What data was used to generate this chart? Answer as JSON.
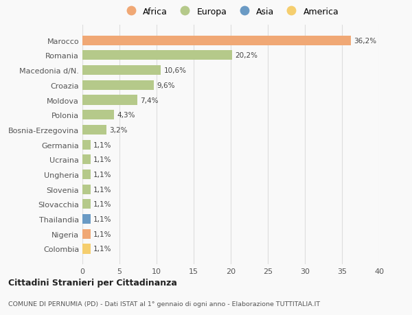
{
  "countries": [
    "Colombia",
    "Nigeria",
    "Thailandia",
    "Slovacchia",
    "Slovenia",
    "Ungheria",
    "Ucraina",
    "Germania",
    "Bosnia-Erzegovina",
    "Polonia",
    "Moldova",
    "Croazia",
    "Macedonia d/N.",
    "Romania",
    "Marocco"
  ],
  "values": [
    1.1,
    1.1,
    1.1,
    1.1,
    1.1,
    1.1,
    1.1,
    1.1,
    3.2,
    4.3,
    7.4,
    9.6,
    10.6,
    20.2,
    36.2
  ],
  "labels": [
    "1,1%",
    "1,1%",
    "1,1%",
    "1,1%",
    "1,1%",
    "1,1%",
    "1,1%",
    "1,1%",
    "3,2%",
    "4,3%",
    "7,4%",
    "9,6%",
    "10,6%",
    "20,2%",
    "36,2%"
  ],
  "bar_colors": [
    "#F5CE6E",
    "#F0A875",
    "#6A9AC4",
    "#B5C98A",
    "#B5C98A",
    "#B5C98A",
    "#B5C98A",
    "#B5C98A",
    "#B5C98A",
    "#B5C98A",
    "#B5C98A",
    "#B5C98A",
    "#B5C98A",
    "#B5C98A",
    "#F0A875"
  ],
  "legend_labels": [
    "Africa",
    "Europa",
    "Asia",
    "America"
  ],
  "legend_colors": [
    "#F0A875",
    "#B5C98A",
    "#6A9AC4",
    "#F5CE6E"
  ],
  "xlim": [
    0,
    40
  ],
  "xticks": [
    0,
    5,
    10,
    15,
    20,
    25,
    30,
    35,
    40
  ],
  "title1": "Cittadini Stranieri per Cittadinanza",
  "title2": "COMUNE DI PERNUMIA (PD) - Dati ISTAT al 1° gennaio di ogni anno - Elaborazione TUTTITALIA.IT",
  "background_color": "#f9f9f9",
  "grid_color": "#dddddd"
}
